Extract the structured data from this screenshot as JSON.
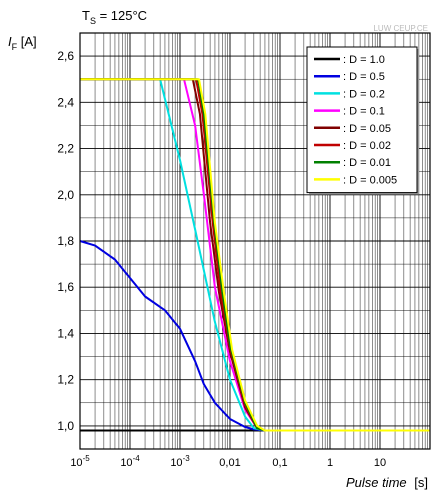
{
  "chart_data": {
    "type": "line",
    "title_parts": {
      "symbol": "T",
      "subscript": "S",
      "rest": " = 125°C"
    },
    "ylabel_parts": {
      "symbol": "I",
      "subscript": "F",
      "rest": " [A]"
    },
    "xlabel": "Pulse time",
    "xunit": "[s]",
    "watermark": "LUW CEUP.CE",
    "x_scale": "log",
    "xlim": [
      1e-05,
      100
    ],
    "ylim": [
      0.9,
      2.7
    ],
    "grid": true,
    "legend_position": "top-right",
    "x_ticks": [
      {
        "value": 1e-05,
        "base": "10",
        "exp": "-5"
      },
      {
        "value": 0.0001,
        "base": "10",
        "exp": "-4"
      },
      {
        "value": 0.001,
        "base": "10",
        "exp": "-3"
      },
      {
        "value": 0.01,
        "base": "0,01",
        "exp": ""
      },
      {
        "value": 0.1,
        "base": "0,1",
        "exp": ""
      },
      {
        "value": 1,
        "base": "1",
        "exp": ""
      },
      {
        "value": 10,
        "base": "10",
        "exp": ""
      }
    ],
    "y_ticks": [
      {
        "value": 1.0,
        "label": "1,0"
      },
      {
        "value": 1.2,
        "label": "1,2"
      },
      {
        "value": 1.4,
        "label": "1,4"
      },
      {
        "value": 1.6,
        "label": "1,6"
      },
      {
        "value": 1.8,
        "label": "1,8"
      },
      {
        "value": 2.0,
        "label": "2,0"
      },
      {
        "value": 2.2,
        "label": "2,2"
      },
      {
        "value": 2.4,
        "label": "2,4"
      },
      {
        "value": 2.6,
        "label": "2,6"
      }
    ],
    "series": [
      {
        "name": ": D = 1.0",
        "color": "#000000",
        "points": [
          [
            1e-05,
            0.98
          ],
          [
            100,
            0.98
          ]
        ]
      },
      {
        "name": ": D = 0.5",
        "color": "#0000e0",
        "points": [
          [
            1e-05,
            1.8
          ],
          [
            2e-05,
            1.78
          ],
          [
            5e-05,
            1.72
          ],
          [
            0.0001,
            1.64
          ],
          [
            0.0002,
            1.56
          ],
          [
            0.0005,
            1.5
          ],
          [
            0.001,
            1.42
          ],
          [
            0.002,
            1.28
          ],
          [
            0.003,
            1.18
          ],
          [
            0.005,
            1.1
          ],
          [
            0.01,
            1.03
          ],
          [
            0.02,
            0.995
          ],
          [
            0.03,
            0.985
          ],
          [
            0.05,
            0.98
          ],
          [
            100,
            0.98
          ]
        ]
      },
      {
        "name": ": D = 0.2",
        "color": "#00e0e0",
        "points": [
          [
            1e-05,
            2.5
          ],
          [
            0.0004,
            2.5
          ],
          [
            0.001,
            2.15
          ],
          [
            0.002,
            1.85
          ],
          [
            0.005,
            1.45
          ],
          [
            0.01,
            1.2
          ],
          [
            0.02,
            1.04
          ],
          [
            0.03,
            0.99
          ],
          [
            0.05,
            0.98
          ],
          [
            100,
            0.98
          ]
        ]
      },
      {
        "name": ": D = 0.1",
        "color": "#ff00ff",
        "points": [
          [
            1e-05,
            2.5
          ],
          [
            0.0012,
            2.5
          ],
          [
            0.002,
            2.3
          ],
          [
            0.003,
            2.0
          ],
          [
            0.005,
            1.6
          ],
          [
            0.01,
            1.28
          ],
          [
            0.02,
            1.07
          ],
          [
            0.035,
            0.99
          ],
          [
            0.05,
            0.98
          ],
          [
            100,
            0.98
          ]
        ]
      },
      {
        "name": ": D = 0.05",
        "color": "#800000",
        "points": [
          [
            1e-05,
            2.5
          ],
          [
            0.0018,
            2.5
          ],
          [
            0.0025,
            2.35
          ],
          [
            0.004,
            1.88
          ],
          [
            0.006,
            1.58
          ],
          [
            0.01,
            1.32
          ],
          [
            0.02,
            1.08
          ],
          [
            0.035,
            0.99
          ],
          [
            0.05,
            0.98
          ],
          [
            100,
            0.98
          ]
        ]
      },
      {
        "name": ": D = 0.02",
        "color": "#c00000",
        "points": [
          [
            1e-05,
            2.5
          ],
          [
            0.0021,
            2.5
          ],
          [
            0.0028,
            2.35
          ],
          [
            0.0045,
            1.88
          ],
          [
            0.0065,
            1.58
          ],
          [
            0.01,
            1.34
          ],
          [
            0.02,
            1.09
          ],
          [
            0.035,
            0.99
          ],
          [
            0.05,
            0.98
          ],
          [
            100,
            0.98
          ]
        ]
      },
      {
        "name": ": D = 0.01",
        "color": "#008000",
        "points": [
          [
            1e-05,
            2.5
          ],
          [
            0.0023,
            2.5
          ],
          [
            0.003,
            2.35
          ],
          [
            0.0048,
            1.88
          ],
          [
            0.007,
            1.58
          ],
          [
            0.01,
            1.35
          ],
          [
            0.02,
            1.1
          ],
          [
            0.035,
            0.99
          ],
          [
            0.05,
            0.98
          ],
          [
            100,
            0.98
          ]
        ]
      },
      {
        "name": ": D = 0.005",
        "color": "#ffff00",
        "points": [
          [
            1e-05,
            2.5
          ],
          [
            0.0024,
            2.5
          ],
          [
            0.0032,
            2.35
          ],
          [
            0.005,
            1.88
          ],
          [
            0.0075,
            1.58
          ],
          [
            0.011,
            1.33
          ],
          [
            0.02,
            1.11
          ],
          [
            0.035,
            1.0
          ],
          [
            0.05,
            0.98
          ],
          [
            100,
            0.98
          ]
        ]
      }
    ]
  }
}
